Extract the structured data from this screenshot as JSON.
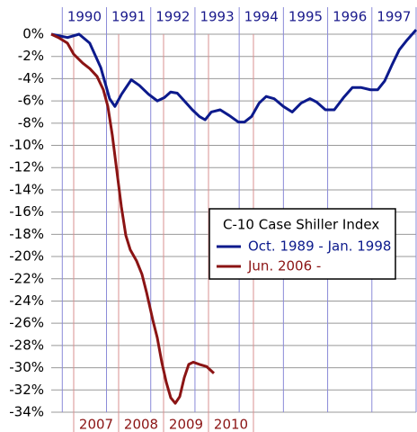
{
  "chart_data": {
    "type": "line",
    "legend_title": "C-10 Case Shiller Index",
    "legend": "right",
    "grid": true,
    "xlim": [
      1989.75,
      1998.0
    ],
    "xticks": [
      1990,
      1991,
      1992,
      1993,
      1994,
      1995,
      1996,
      1997
    ],
    "x2lim": [
      2006.5,
      2014.62
    ],
    "x2ticks": [
      2007,
      2008,
      2009,
      2010
    ],
    "ylim": [
      -34,
      0
    ],
    "yticks": [
      {
        "value": 0,
        "label": "0%"
      },
      {
        "value": -2,
        "label": "-2%"
      },
      {
        "value": -4,
        "label": "-4%"
      },
      {
        "value": -6,
        "label": "-6%"
      },
      {
        "value": -8,
        "label": "-8%"
      },
      {
        "value": -10,
        "label": "-10%"
      },
      {
        "value": -12,
        "label": "-12%"
      },
      {
        "value": -14,
        "label": "-14%"
      },
      {
        "value": -16,
        "label": "-16%"
      },
      {
        "value": -18,
        "label": "-18%"
      },
      {
        "value": -20,
        "label": "-20%"
      },
      {
        "value": -22,
        "label": "-22%"
      },
      {
        "value": -24,
        "label": "-24%"
      },
      {
        "value": -26,
        "label": "-26%"
      },
      {
        "value": -28,
        "label": "-28%"
      },
      {
        "value": -30,
        "label": "-30%"
      },
      {
        "value": -32,
        "label": "-32%"
      },
      {
        "value": -34,
        "label": "-34%"
      }
    ],
    "series": [
      {
        "name": "Oct. 1989 - Jan. 1998",
        "color": "#0c1a8c",
        "axis": "x",
        "x": [
          1989.75,
          1990.12,
          1990.38,
          1990.62,
          1990.87,
          1991.07,
          1991.19,
          1991.34,
          1991.56,
          1991.74,
          1991.95,
          1992.15,
          1992.31,
          1992.45,
          1992.6,
          1992.76,
          1992.94,
          1993.1,
          1993.23,
          1993.37,
          1993.57,
          1993.77,
          1993.98,
          1994.12,
          1994.28,
          1994.45,
          1994.61,
          1994.79,
          1995.0,
          1995.2,
          1995.4,
          1995.6,
          1995.75,
          1995.95,
          1996.15,
          1996.36,
          1996.56,
          1996.76,
          1996.97,
          1997.13,
          1997.29,
          1997.45,
          1997.62,
          1997.78,
          1998.0
        ],
        "values": [
          0,
          -0.3,
          0,
          -0.8,
          -3,
          -5.8,
          -6.5,
          -5.4,
          -4.1,
          -4.6,
          -5.4,
          -6.0,
          -5.7,
          -5.2,
          -5.3,
          -6.0,
          -6.8,
          -7.4,
          -7.7,
          -7.0,
          -6.8,
          -7.3,
          -7.9,
          -7.9,
          -7.4,
          -6.2,
          -5.6,
          -5.8,
          -6.5,
          -7.0,
          -6.2,
          -5.8,
          -6.1,
          -6.8,
          -6.8,
          -5.7,
          -4.8,
          -4.8,
          -5.0,
          -5.0,
          -4.2,
          -2.8,
          -1.4,
          -0.6,
          0.4
        ]
      },
      {
        "name": "Jun. 2006 -",
        "color": "#8b1414",
        "axis": "x2",
        "x": [
          2006.5,
          2006.66,
          2006.86,
          2007.0,
          2007.2,
          2007.36,
          2007.52,
          2007.66,
          2007.76,
          2007.86,
          2007.96,
          2008.06,
          2008.16,
          2008.26,
          2008.4,
          2008.52,
          2008.62,
          2008.76,
          2008.86,
          2008.96,
          2009.06,
          2009.16,
          2009.26,
          2009.36,
          2009.46,
          2009.56,
          2009.66,
          2009.8,
          2009.96,
          2010.12
        ],
        "values": [
          0,
          -0.3,
          -0.8,
          -1.8,
          -2.6,
          -3.1,
          -3.8,
          -5.0,
          -6.5,
          -9.1,
          -12.3,
          -15.5,
          -18.1,
          -19.4,
          -20.4,
          -21.6,
          -23.2,
          -25.7,
          -27.3,
          -29.5,
          -31.3,
          -32.7,
          -33.2,
          -32.6,
          -30.9,
          -29.7,
          -29.5,
          -29.7,
          -29.9,
          -30.5
        ]
      }
    ]
  }
}
